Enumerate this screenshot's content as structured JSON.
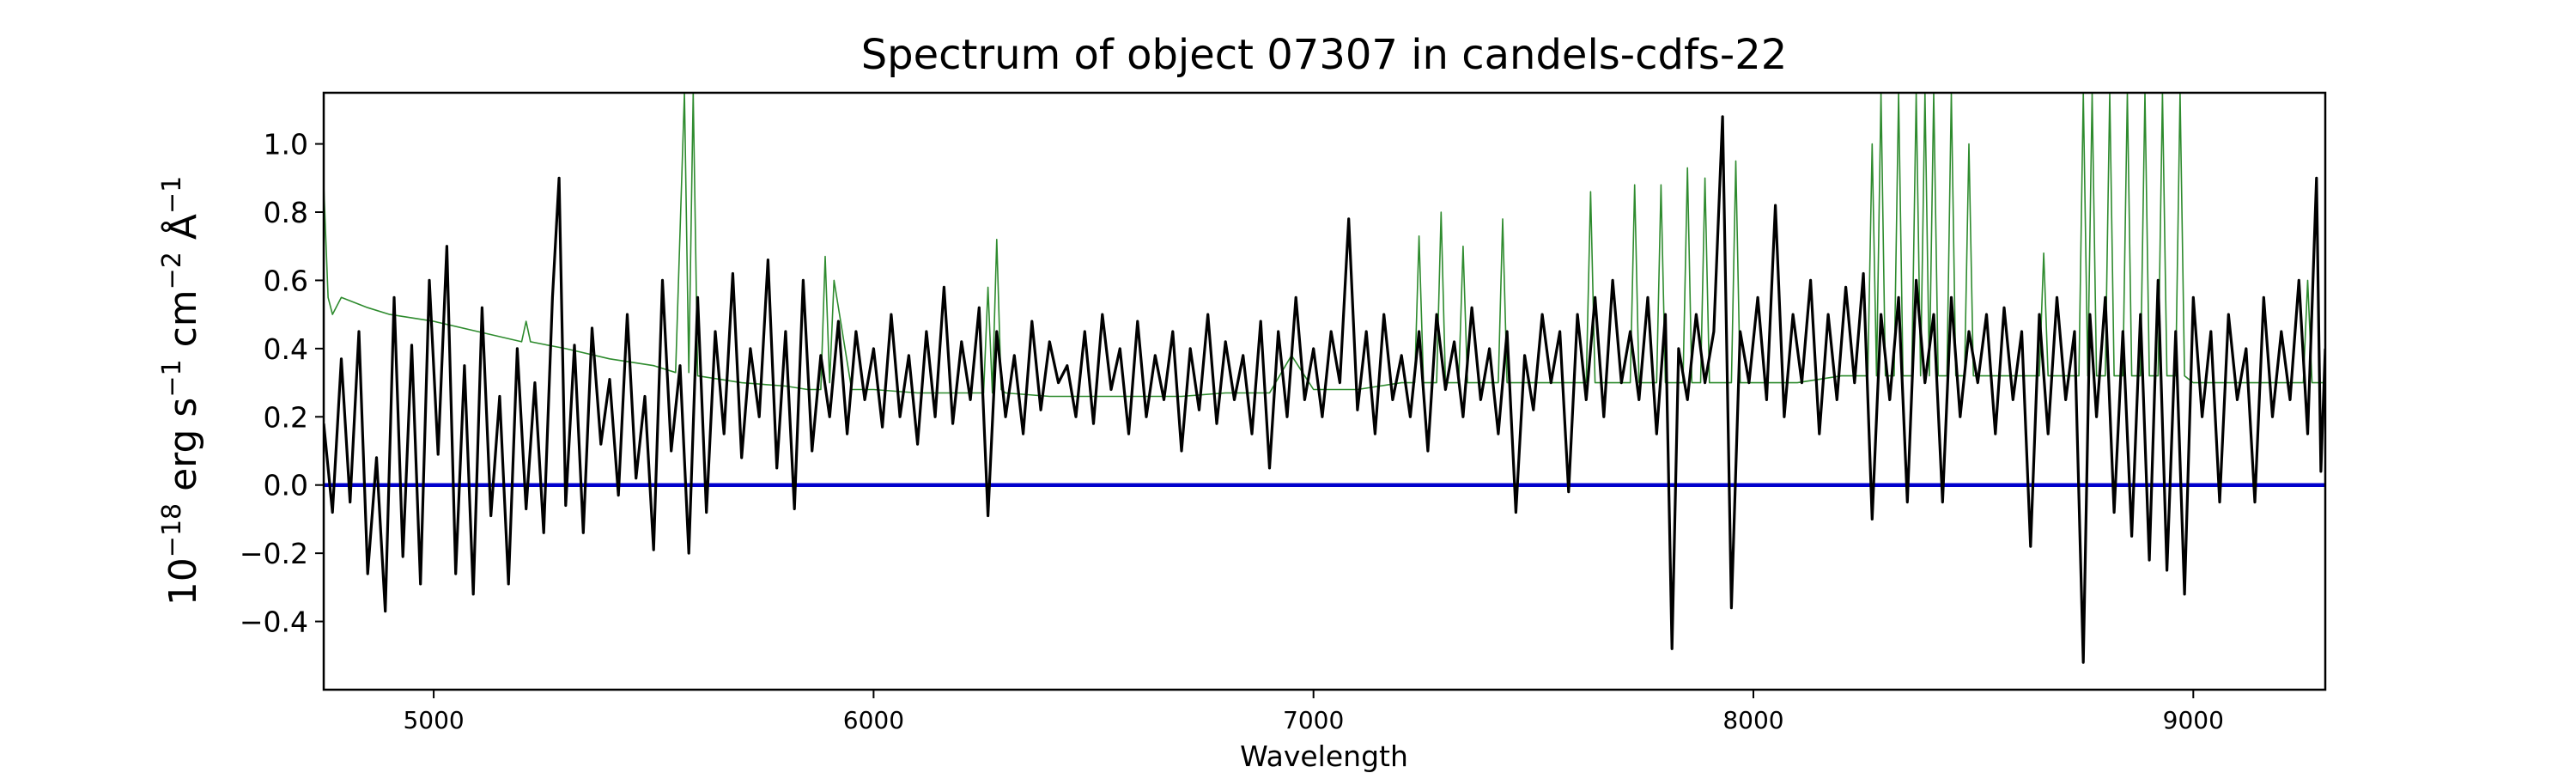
{
  "chart_data": {
    "type": "line",
    "title": "Spectrum of object 07307 in candels-cdfs-22",
    "xlabel": "Wavelength",
    "ylabel": {
      "base": "10",
      "exp1": "−18",
      "unit1": " erg s",
      "exp2": "−1",
      "unit2": " cm",
      "exp3": "−2",
      "unit3": " Å",
      "exp4": "−1"
    },
    "xlim": [
      4750,
      9300
    ],
    "ylim": [
      -0.6,
      1.15
    ],
    "x_ticks": [
      {
        "value": 5000,
        "label": "5000"
      },
      {
        "value": 6000,
        "label": "6000"
      },
      {
        "value": 7000,
        "label": "7000"
      },
      {
        "value": 8000,
        "label": "8000"
      },
      {
        "value": 9000,
        "label": "9000"
      }
    ],
    "y_ticks": [
      {
        "value": -0.4,
        "label": "−0.4"
      },
      {
        "value": -0.2,
        "label": "−0.2"
      },
      {
        "value": 0.0,
        "label": "0.0"
      },
      {
        "value": 0.2,
        "label": "0.2"
      },
      {
        "value": 0.4,
        "label": "0.4"
      },
      {
        "value": 0.6,
        "label": "0.6"
      },
      {
        "value": 0.8,
        "label": "0.8"
      },
      {
        "value": 1.0,
        "label": "1.0"
      }
    ],
    "grid": false,
    "series": [
      {
        "role": "flux",
        "color": "#000000",
        "x": [
          4750,
          4770,
          4790,
          4810,
          4830,
          4850,
          4870,
          4890,
          4910,
          4930,
          4950,
          4970,
          4990,
          5010,
          5030,
          5050,
          5070,
          5090,
          5110,
          5130,
          5150,
          5170,
          5190,
          5210,
          5230,
          5250,
          5270,
          5285,
          5300,
          5320,
          5340,
          5360,
          5380,
          5400,
          5420,
          5440,
          5460,
          5480,
          5500,
          5520,
          5540,
          5560,
          5580,
          5600,
          5620,
          5640,
          5660,
          5680,
          5700,
          5720,
          5740,
          5760,
          5780,
          5800,
          5820,
          5840,
          5860,
          5880,
          5900,
          5920,
          5940,
          5960,
          5980,
          6000,
          6020,
          6040,
          6060,
          6080,
          6100,
          6120,
          6140,
          6160,
          6180,
          6200,
          6220,
          6240,
          6260,
          6280,
          6300,
          6320,
          6340,
          6360,
          6380,
          6400,
          6420,
          6440,
          6460,
          6480,
          6500,
          6520,
          6540,
          6560,
          6580,
          6600,
          6620,
          6640,
          6660,
          6680,
          6700,
          6720,
          6740,
          6760,
          6780,
          6800,
          6820,
          6840,
          6860,
          6880,
          6900,
          6920,
          6940,
          6960,
          6980,
          7000,
          7020,
          7040,
          7060,
          7080,
          7100,
          7120,
          7140,
          7160,
          7180,
          7200,
          7220,
          7240,
          7260,
          7280,
          7300,
          7320,
          7340,
          7360,
          7380,
          7400,
          7420,
          7440,
          7460,
          7480,
          7500,
          7520,
          7540,
          7560,
          7580,
          7600,
          7620,
          7640,
          7660,
          7680,
          7700,
          7720,
          7740,
          7760,
          7780,
          7800,
          7815,
          7830,
          7850,
          7870,
          7890,
          7910,
          7930,
          7950,
          7970,
          7990,
          8010,
          8030,
          8050,
          8070,
          8090,
          8110,
          8130,
          8150,
          8170,
          8190,
          8210,
          8230,
          8250,
          8270,
          8290,
          8310,
          8330,
          8350,
          8370,
          8390,
          8410,
          8430,
          8450,
          8470,
          8490,
          8510,
          8530,
          8550,
          8570,
          8590,
          8610,
          8630,
          8650,
          8670,
          8690,
          8710,
          8730,
          8750,
          8765,
          8780,
          8800,
          8820,
          8840,
          8860,
          8880,
          8900,
          8920,
          8940,
          8960,
          8980,
          9000,
          9020,
          9040,
          9060,
          9080,
          9100,
          9120,
          9140,
          9160,
          9180,
          9200,
          9220,
          9240,
          9260,
          9280,
          9290,
          9300
        ],
        "y": [
          0.18,
          -0.08,
          0.37,
          -0.05,
          0.45,
          -0.26,
          0.08,
          -0.37,
          0.55,
          -0.21,
          0.41,
          -0.29,
          0.6,
          0.09,
          0.7,
          -0.26,
          0.35,
          -0.32,
          0.52,
          -0.09,
          0.26,
          -0.29,
          0.4,
          -0.07,
          0.3,
          -0.14,
          0.55,
          0.9,
          -0.06,
          0.41,
          -0.14,
          0.46,
          0.12,
          0.31,
          -0.03,
          0.5,
          0.02,
          0.26,
          -0.19,
          0.6,
          0.1,
          0.35,
          -0.2,
          0.55,
          -0.08,
          0.45,
          0.15,
          0.62,
          0.08,
          0.4,
          0.2,
          0.66,
          0.05,
          0.45,
          -0.07,
          0.6,
          0.1,
          0.38,
          0.2,
          0.48,
          0.15,
          0.45,
          0.25,
          0.4,
          0.17,
          0.5,
          0.2,
          0.38,
          0.12,
          0.45,
          0.2,
          0.58,
          0.18,
          0.42,
          0.25,
          0.52,
          -0.09,
          0.45,
          0.2,
          0.38,
          0.15,
          0.48,
          0.22,
          0.42,
          0.3,
          0.35,
          0.2,
          0.45,
          0.18,
          0.5,
          0.28,
          0.4,
          0.15,
          0.48,
          0.2,
          0.38,
          0.25,
          0.45,
          0.1,
          0.4,
          0.22,
          0.5,
          0.18,
          0.42,
          0.25,
          0.38,
          0.15,
          0.48,
          0.05,
          0.45,
          0.2,
          0.55,
          0.25,
          0.4,
          0.2,
          0.45,
          0.3,
          0.78,
          0.22,
          0.45,
          0.15,
          0.5,
          0.25,
          0.38,
          0.2,
          0.45,
          0.1,
          0.5,
          0.28,
          0.42,
          0.2,
          0.52,
          0.25,
          0.4,
          0.15,
          0.45,
          -0.08,
          0.38,
          0.22,
          0.5,
          0.3,
          0.45,
          -0.02,
          0.5,
          0.25,
          0.55,
          0.2,
          0.6,
          0.3,
          0.45,
          0.25,
          0.55,
          0.15,
          0.5,
          -0.48,
          0.4,
          0.25,
          0.5,
          0.3,
          0.45,
          1.08,
          -0.36,
          0.45,
          0.3,
          0.55,
          0.25,
          0.82,
          0.2,
          0.5,
          0.3,
          0.6,
          0.15,
          0.5,
          0.25,
          0.58,
          0.3,
          0.62,
          -0.1,
          0.5,
          0.25,
          0.55,
          -0.05,
          0.6,
          0.3,
          0.5,
          -0.05,
          0.55,
          0.2,
          0.45,
          0.3,
          0.5,
          0.15,
          0.52,
          0.25,
          0.45,
          -0.18,
          0.5,
          0.15,
          0.55,
          0.25,
          0.45,
          -0.52,
          0.5,
          0.2,
          0.55,
          -0.08,
          0.45,
          -0.15,
          0.5,
          -0.22,
          0.6,
          -0.25,
          0.45,
          -0.32,
          0.55,
          0.2,
          0.45,
          -0.05,
          0.5,
          0.25,
          0.4,
          -0.05,
          0.55,
          0.2,
          0.45,
          0.25,
          0.6,
          0.15,
          0.9,
          0.04,
          0.4
        ]
      },
      {
        "role": "error",
        "color": "#2e8b2e",
        "x": [
          4750,
          4760,
          4770,
          4790,
          4850,
          4900,
          5000,
          5100,
          5200,
          5210,
          5220,
          5300,
          5400,
          5500,
          5550,
          5570,
          5580,
          5590,
          5600,
          5700,
          5800,
          5850,
          5880,
          5890,
          5900,
          5910,
          5950,
          6000,
          6100,
          6200,
          6250,
          6260,
          6270,
          6280,
          6290,
          6300,
          6400,
          6500,
          6600,
          6700,
          6800,
          6900,
          6950,
          7000,
          7100,
          7200,
          7230,
          7240,
          7250,
          7280,
          7290,
          7300,
          7330,
          7340,
          7350,
          7400,
          7420,
          7430,
          7440,
          7500,
          7600,
          7620,
          7630,
          7640,
          7700,
          7720,
          7730,
          7740,
          7780,
          7790,
          7800,
          7840,
          7850,
          7860,
          7880,
          7890,
          7900,
          7950,
          7960,
          7970,
          8000,
          8100,
          8200,
          8260,
          8270,
          8280,
          8290,
          8300,
          8320,
          8330,
          8340,
          8360,
          8370,
          8380,
          8390,
          8400,
          8410,
          8420,
          8440,
          8450,
          8460,
          8480,
          8490,
          8500,
          8600,
          8650,
          8660,
          8670,
          8700,
          8740,
          8750,
          8760,
          8770,
          8780,
          8800,
          8810,
          8820,
          8840,
          8850,
          8860,
          8880,
          8890,
          8900,
          8920,
          8930,
          8940,
          8960,
          8970,
          8980,
          9000,
          9100,
          9200,
          9250,
          9260,
          9270,
          9300
        ],
        "y": [
          0.88,
          0.55,
          0.5,
          0.55,
          0.52,
          0.5,
          0.48,
          0.45,
          0.42,
          0.48,
          0.42,
          0.4,
          0.37,
          0.35,
          0.33,
          1.15,
          0.33,
          1.15,
          0.32,
          0.3,
          0.29,
          0.28,
          0.28,
          0.67,
          0.3,
          0.6,
          0.28,
          0.28,
          0.27,
          0.27,
          0.27,
          0.58,
          0.27,
          0.72,
          0.28,
          0.27,
          0.26,
          0.26,
          0.26,
          0.26,
          0.27,
          0.27,
          0.38,
          0.28,
          0.28,
          0.3,
          0.3,
          0.73,
          0.3,
          0.3,
          0.8,
          0.3,
          0.3,
          0.7,
          0.3,
          0.3,
          0.3,
          0.78,
          0.3,
          0.3,
          0.3,
          0.3,
          0.86,
          0.3,
          0.3,
          0.3,
          0.88,
          0.3,
          0.3,
          0.88,
          0.3,
          0.3,
          0.93,
          0.3,
          0.3,
          0.9,
          0.3,
          0.3,
          0.95,
          0.3,
          0.3,
          0.3,
          0.32,
          0.32,
          1.0,
          0.32,
          1.15,
          0.32,
          0.32,
          1.15,
          0.32,
          0.32,
          1.15,
          0.32,
          1.15,
          0.32,
          1.15,
          0.32,
          0.32,
          1.15,
          0.32,
          0.32,
          1.0,
          0.32,
          0.32,
          0.32,
          0.68,
          0.32,
          0.32,
          0.32,
          1.15,
          0.32,
          1.15,
          0.32,
          0.32,
          1.15,
          0.32,
          0.32,
          1.15,
          0.32,
          0.32,
          1.15,
          0.32,
          0.32,
          1.15,
          0.32,
          0.32,
          1.15,
          0.32,
          0.3,
          0.3,
          0.3,
          0.3,
          0.6,
          0.3,
          0.3
        ]
      },
      {
        "role": "zero-line",
        "color": "#0000cc",
        "x": [
          4750,
          9300
        ],
        "y": [
          0,
          0
        ]
      }
    ]
  }
}
